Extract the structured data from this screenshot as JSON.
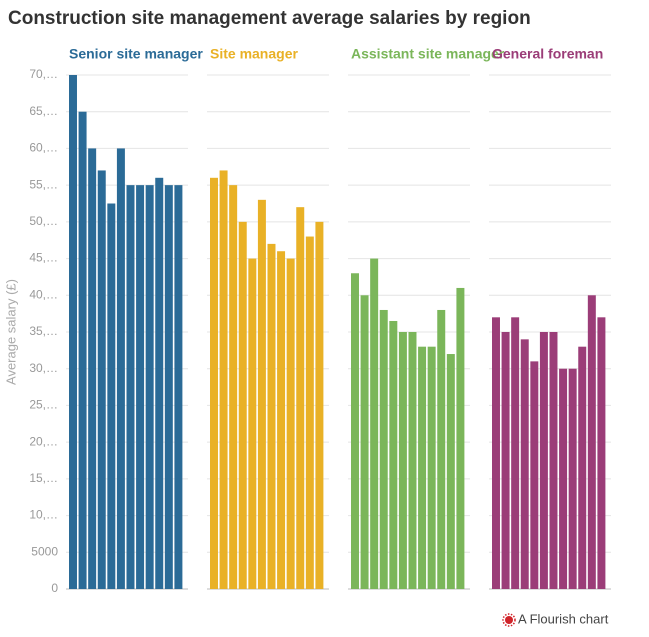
{
  "chart_data": {
    "type": "bar",
    "title": "Construction site management average salaries by region",
    "y_label": "Average salary (£)",
    "credit": "A Flourish chart",
    "categories": [
      null,
      null,
      null,
      null,
      null,
      null,
      null,
      null,
      null,
      null,
      null,
      null
    ],
    "series": [
      {
        "name": "Senior site manager",
        "color": "#2b6b97",
        "values": [
          70000,
          65000,
          60000,
          57000,
          52500,
          60000,
          55000,
          55000,
          55000,
          56000,
          55000,
          55000
        ]
      },
      {
        "name": "Site manager",
        "color": "#e9b126",
        "values": [
          56000,
          57000,
          55000,
          50000,
          45000,
          53000,
          47000,
          46000,
          45000,
          52000,
          48000,
          50000
        ]
      },
      {
        "name": "Assistant site manager",
        "color": "#7bb65a",
        "values": [
          43000,
          40000,
          45000,
          38000,
          36500,
          35000,
          35000,
          33000,
          33000,
          38000,
          32000,
          41000
        ]
      },
      {
        "name": "General foreman",
        "color": "#9b3d78",
        "values": [
          37000,
          35000,
          37000,
          34000,
          31000,
          35000,
          35000,
          30000,
          30000,
          33000,
          40000,
          37000
        ]
      }
    ],
    "ylim": [
      0,
      70000
    ],
    "yticks": [
      0,
      5000,
      {
        "value": 10000,
        "label": "10,…"
      },
      {
        "value": 15000,
        "label": "15,…"
      },
      {
        "value": 20000,
        "label": "20,…"
      },
      {
        "value": 25000,
        "label": "25,…"
      },
      {
        "value": 30000,
        "label": "30,…"
      },
      {
        "value": 35000,
        "label": "35,…"
      },
      {
        "value": 40000,
        "label": "40,…"
      },
      {
        "value": 45000,
        "label": "45,…"
      },
      {
        "value": 50000,
        "label": "50,…"
      },
      {
        "value": 55000,
        "label": "55,…"
      },
      {
        "value": 60000,
        "label": "60,…"
      },
      {
        "value": 65000,
        "label": "65,…"
      },
      {
        "value": 70000,
        "label": "70,…"
      }
    ],
    "grid": true
  }
}
